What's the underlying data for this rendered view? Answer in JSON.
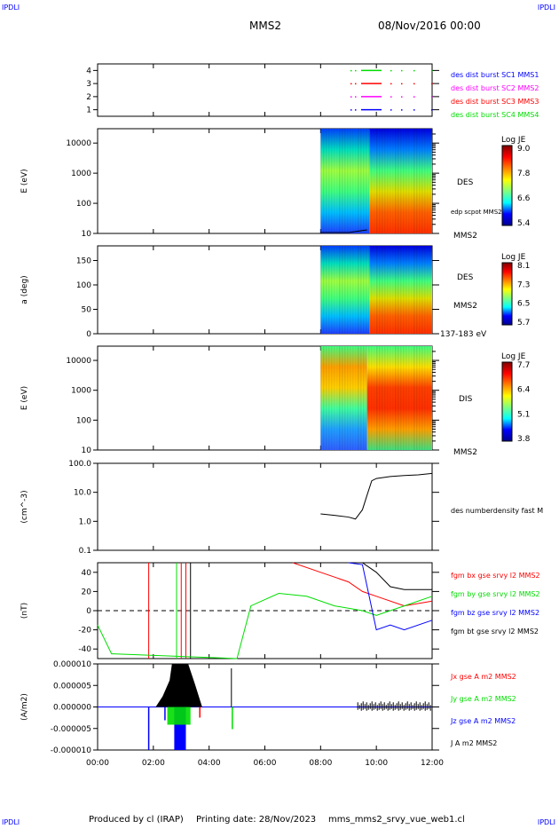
{
  "header": {
    "corner_left": "IPDLI",
    "corner_right": "IPDLI",
    "mission": "MMS2",
    "date": "08/Nov/2016 00:00"
  },
  "footer": {
    "produced": "Produced by cl (IRAP)",
    "printing": "Printing date: 28/Nov/2023",
    "file": "mms_mms2_srvy_vue_web1.cl",
    "corner_left": "IPDLI",
    "corner_right": "IPDLI"
  },
  "chart_data": [
    {
      "type": "line",
      "panel": "availability",
      "yticks": [
        "1",
        "2",
        "3",
        "4"
      ],
      "ylim": [
        0.5,
        4.5
      ],
      "legend": [
        {
          "name": "des dist burst SC1 MMS1",
          "color": "#0000ff"
        },
        {
          "name": "des dist burst SC2 MMS2",
          "color": "#ff00ff"
        },
        {
          "name": "des dist burst SC3 MMS3",
          "color": "#ff0000"
        },
        {
          "name": "des dist burst SC4 MMS4",
          "color": "#00dd00"
        }
      ]
    },
    {
      "type": "heatmap",
      "panel": "des-energy",
      "ylabel": "E (eV)",
      "yscale": "log",
      "yticks": [
        "10",
        "100",
        "1000",
        "10000"
      ],
      "ylim": [
        10,
        30000
      ],
      "labels": [
        "DES",
        "edp scpot MMS2",
        "MMS2"
      ],
      "colorbar": {
        "title": "Log JE",
        "ticks": [
          "9.0",
          "7.8",
          "6.6",
          "5.4"
        ],
        "range": [
          5.4,
          9.0
        ]
      },
      "data_start": "08:00"
    },
    {
      "type": "heatmap",
      "panel": "des-pitch",
      "ylabel": "a (deg)",
      "yticks": [
        "0",
        "50",
        "100",
        "150"
      ],
      "ylim": [
        0,
        180
      ],
      "labels": [
        "DES",
        "MMS2",
        "137-183 eV"
      ],
      "colorbar": {
        "title": "Log JE",
        "ticks": [
          "8.1",
          "7.3",
          "6.5",
          "5.7"
        ],
        "range": [
          5.7,
          8.1
        ]
      },
      "data_start": "08:00"
    },
    {
      "type": "heatmap",
      "panel": "dis-energy",
      "ylabel": "E (eV)",
      "yscale": "log",
      "yticks": [
        "10",
        "100",
        "1000",
        "10000"
      ],
      "ylim": [
        10,
        30000
      ],
      "labels": [
        "DIS",
        "MMS2"
      ],
      "colorbar": {
        "title": "Log JE",
        "ticks": [
          "7.7",
          "6.4",
          "5.1",
          "3.8"
        ],
        "range": [
          3.8,
          7.7
        ]
      },
      "data_start": "08:00"
    },
    {
      "type": "line",
      "panel": "density",
      "ylabel": "(cm^-3)",
      "yscale": "log",
      "yticks": [
        "0.1",
        "1.0",
        "10.0",
        "100.0"
      ],
      "ylim": [
        0.1,
        100
      ],
      "series": [
        {
          "name": "des numberdensity fast M",
          "color": "#000000",
          "x": [
            "08:00",
            "08:30",
            "09:00",
            "09:15",
            "09:30",
            "09:40",
            "09:50",
            "10:00",
            "10:30",
            "11:00",
            "11:30",
            "12:00"
          ],
          "y": [
            1.8,
            1.6,
            1.4,
            1.2,
            2.5,
            8,
            25,
            30,
            35,
            38,
            40,
            45
          ]
        }
      ]
    },
    {
      "type": "line",
      "panel": "magnetic-field",
      "ylabel": "(nT)",
      "yticks": [
        "40",
        "20",
        "0",
        "-20",
        "-40"
      ],
      "ylim": [
        -50,
        50
      ],
      "series": [
        {
          "name": "fgm bx gse srvy l2 MMS2",
          "color": "#ff0000",
          "x": [
            "07:00",
            "08:00",
            "09:00",
            "09:30",
            "10:00",
            "11:00",
            "12:00"
          ],
          "y": [
            50,
            40,
            30,
            20,
            15,
            5,
            10
          ]
        },
        {
          "name": "fgm by gse srvy l2 MMS2",
          "color": "#00dd00",
          "x": [
            "00:00",
            "00:30",
            "05:00",
            "05:30",
            "06:30",
            "07:30",
            "08:30",
            "09:30",
            "10:00",
            "11:00",
            "12:00"
          ],
          "y": [
            -15,
            -45,
            -50,
            5,
            18,
            15,
            5,
            0,
            -5,
            5,
            15
          ]
        },
        {
          "name": "fgm bz gse srvy l2 MMS2",
          "color": "#0000ff",
          "x": [
            "09:00",
            "09:30",
            "10:00",
            "10:30",
            "11:00",
            "12:00"
          ],
          "y": [
            50,
            48,
            -20,
            -15,
            -20,
            -10
          ]
        },
        {
          "name": "fgm bt gse srvy l2 MMS2",
          "color": "#000000",
          "x": [
            "09:30",
            "10:00",
            "10:30",
            "11:00",
            "12:00"
          ],
          "y": [
            50,
            40,
            25,
            22,
            22
          ]
        }
      ]
    },
    {
      "type": "line",
      "panel": "current-density",
      "ylabel": "(A/m2)",
      "yticks": [
        "0.000010",
        "0.000005",
        "0.000000",
        "-0.000005",
        "-0.000010"
      ],
      "ylim": [
        -1e-05,
        1e-05
      ],
      "series": [
        {
          "name": "Jx gse A m2 MMS2",
          "color": "#ff0000"
        },
        {
          "name": "Jy gse A m2 MMS2",
          "color": "#00dd00"
        },
        {
          "name": "Jz gse A m2 MMS2",
          "color": "#0000ff"
        },
        {
          "name": "J A m2 MMS2",
          "color": "#000000"
        }
      ]
    }
  ],
  "xaxis": {
    "ticks": [
      "00:00",
      "02:00",
      "04:00",
      "06:00",
      "08:00",
      "10:00",
      "12:00"
    ],
    "range": [
      "00:00",
      "12:00"
    ]
  }
}
